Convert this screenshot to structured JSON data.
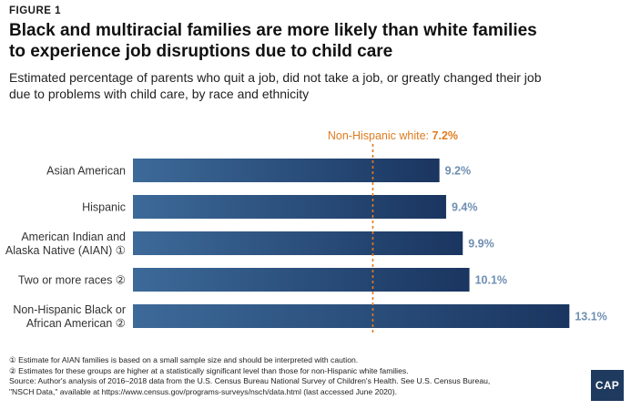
{
  "figure_label": "FIGURE 1",
  "title_line1": "Black and multiracial families are more likely than white families",
  "title_line2": "to experience job disruptions due to child care",
  "subtitle_line1": "Estimated percentage of parents who quit a job, did not take a job, or greatly changed their job",
  "subtitle_line2": "due to problems with child care, by race and ethnicity",
  "chart_data": {
    "type": "bar",
    "orientation": "horizontal",
    "categories": [
      [
        "Asian American"
      ],
      [
        "Hispanic"
      ],
      [
        "American Indian and",
        "Alaska Native (AIAN) ①"
      ],
      [
        "Two or more races ②"
      ],
      [
        "Non-Hispanic Black or",
        "African American ②"
      ]
    ],
    "values": [
      9.2,
      9.4,
      9.9,
      10.1,
      13.1
    ],
    "value_labels": [
      "9.2%",
      "9.4%",
      "9.9%",
      "10.1%",
      "13.1%"
    ],
    "xlim": [
      0,
      14
    ],
    "reference_line": {
      "value": 7.2,
      "label_prefix": "Non-Hispanic white: ",
      "label_value": "7.2%",
      "color": "#e07b1f"
    },
    "bar_color_start": "#3d6a99",
    "bar_color_end": "#1a3560",
    "value_label_color": "#6e8fb0"
  },
  "footnotes": [
    "① Estimate for AIAN families is based on a small sample size and should be interpreted with caution.",
    "② Estimates for these groups are higher at a statistically significant level than those for non-Hispanic white families.",
    "Source: Author's analysis of 2016–2018 data from the U.S. Census Bureau National Survey of Children's Health. See U.S. Census Bureau,",
    "\"NSCH Data,\" available at https://www.census.gov/programs-surveys/nsch/data.html (last accessed June 2020)."
  ],
  "logo_text": "CAP"
}
